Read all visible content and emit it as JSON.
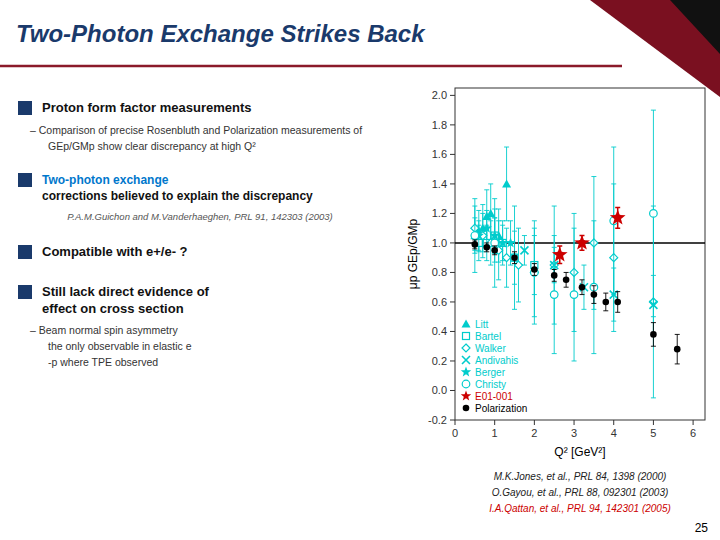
{
  "chart_data": {
    "type": "scatter",
    "title": "Two-Photon Exchange Strikes Back",
    "x_label": "Q² [GeV²]",
    "y_label": "μp GEp/GMp",
    "xlim": [
      0,
      6.3
    ],
    "xticks": [
      0,
      1,
      2,
      3,
      4,
      5,
      6
    ],
    "ylim": [
      -0.2,
      2.05
    ],
    "yticks": [
      -0.2,
      {
        "value": 0,
        "label": "0.0"
      },
      0.2,
      0.4,
      0.6,
      0.8,
      {
        "value": 1,
        "label": "1.0"
      },
      1.2,
      1.4,
      1.6,
      1.8,
      {
        "value": 2,
        "label": "2.0"
      }
    ],
    "grid": false,
    "legend": "lower left",
    "hline": 1.0,
    "series": [
      {
        "name": "Litt",
        "color": "#00cccc",
        "marker": "triangle",
        "x": [
          0.5,
          0.6,
          0.7,
          0.8,
          0.9,
          1.0,
          1.1,
          1.3
        ],
        "values": [
          1.05,
          1.08,
          1.1,
          1.18,
          1.2,
          1.05,
          1.05,
          1.4
        ],
        "yerr": [
          0.12,
          0.14,
          0.16,
          0.18,
          0.2,
          0.18,
          0.18,
          0.25
        ]
      },
      {
        "name": "Bartel",
        "color": "#00cccc",
        "marker": "open-square",
        "x": [
          0.6,
          0.8,
          1.0,
          1.2,
          1.5,
          2.0
        ],
        "values": [
          1.0,
          1.0,
          1.05,
          1.0,
          0.9,
          0.85
        ],
        "yerr": [
          0.12,
          0.12,
          0.12,
          0.15,
          0.18,
          0.2
        ]
      },
      {
        "name": "Walker",
        "color": "#00cccc",
        "marker": "open-diamond",
        "x": [
          0.5,
          0.7,
          0.9,
          1.1,
          1.3,
          1.6,
          2.0,
          2.5,
          3.0,
          3.5,
          4.0,
          5.0
        ],
        "values": [
          1.1,
          1.05,
          1.0,
          0.95,
          0.9,
          0.85,
          0.8,
          0.85,
          0.8,
          1.0,
          0.9,
          0.6
        ],
        "yerr": [
          0.15,
          0.15,
          0.15,
          0.2,
          0.2,
          0.25,
          0.3,
          0.4,
          0.4,
          0.45,
          0.5,
          0.65
        ]
      },
      {
        "name": "Andivahis",
        "color": "#00cccc",
        "marker": "x",
        "x": [
          1.75,
          2.5,
          3.25,
          4.0,
          5.0
        ],
        "values": [
          0.95,
          0.85,
          0.7,
          0.65,
          0.58
        ],
        "yerr": [
          0.1,
          0.12,
          0.15,
          0.18,
          0.2
        ]
      },
      {
        "name": "Berger",
        "color": "#00cccc",
        "marker": "star",
        "x": [
          0.6,
          0.8,
          1.0,
          1.2,
          1.4
        ],
        "values": [
          1.05,
          1.1,
          1.05,
          1.0,
          1.0
        ],
        "yerr": [
          0.1,
          0.12,
          0.12,
          0.12,
          0.15
        ]
      },
      {
        "name": "Christy",
        "color": "#00cccc",
        "marker": "open-circle",
        "x": [
          0.5,
          1.0,
          1.5,
          2.0,
          2.5,
          3.0,
          3.5,
          4.0,
          5.0
        ],
        "values": [
          1.05,
          1.0,
          0.9,
          0.8,
          0.65,
          0.65,
          0.7,
          1.15,
          1.2
        ],
        "yerr": [
          0.25,
          0.3,
          0.35,
          0.35,
          0.4,
          0.45,
          0.45,
          0.5,
          0.7
        ]
      },
      {
        "name": "E01-001",
        "color": "#cc0000",
        "marker": "star",
        "x": [
          2.64,
          3.2,
          4.1
        ],
        "values": [
          0.92,
          1.0,
          1.17
        ],
        "xerr": [
          0.05,
          0.05,
          0.05
        ],
        "yerr": [
          0.06,
          0.05,
          0.07
        ]
      },
      {
        "name": "Polarization",
        "color": "#000000",
        "marker": "circle",
        "x": [
          0.5,
          0.8,
          1.0,
          1.5,
          2.0,
          2.5,
          2.8,
          3.2,
          3.5,
          3.8,
          4.1,
          5.0,
          5.6
        ],
        "values": [
          0.99,
          0.97,
          0.95,
          0.9,
          0.82,
          0.78,
          0.75,
          0.7,
          0.65,
          0.6,
          0.6,
          0.38,
          0.28
        ],
        "yerr": [
          0.03,
          0.03,
          0.03,
          0.04,
          0.04,
          0.04,
          0.05,
          0.05,
          0.06,
          0.06,
          0.07,
          0.08,
          0.1
        ]
      }
    ],
    "annotations": [
      "Proton form factor measurements",
      "–  Comparison of precise Rosenbluth and Polarization measurements of",
      "GEp/GMp show clear discrepancy at high Q²",
      "Two-photon exchange",
      " corrections believed to explain the discrepancy",
      "P.A.M.Guichon and M.Vanderhaeghen, PRL 91, 142303 (2003)",
      "Compatible with e+/e- ?",
      "Still lack direct evidence of",
      "effect on cross section",
      "–  Beam normal spin asymmetry",
      "the only observable in elastic e",
      "-p where TPE observed",
      "M.K.Jones, et al., PRL 84, 1398 (2000)",
      "O.Gayou, et al., PRL 88, 092301 (2003)",
      "I.A.Qattan, et al., PRL 94, 142301 (2005)",
      "25"
    ]
  }
}
